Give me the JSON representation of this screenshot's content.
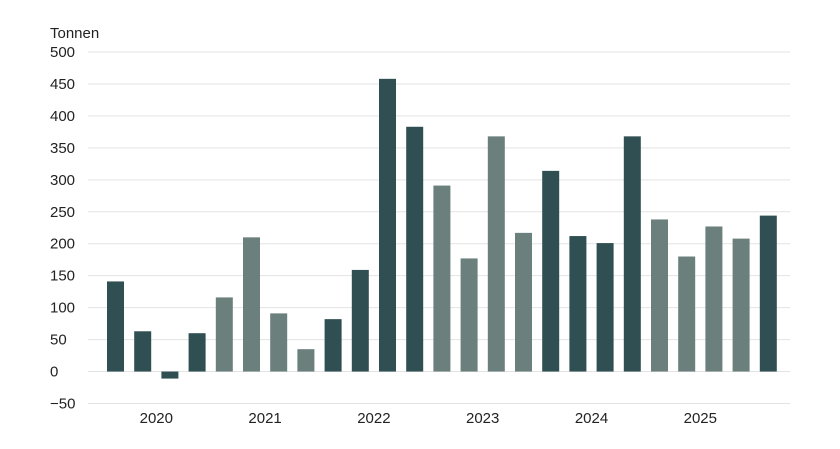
{
  "chart_data": {
    "type": "bar",
    "unit_label": "Tonnen",
    "ylim": [
      -50,
      500
    ],
    "yticks": [
      -50,
      0,
      50,
      100,
      150,
      200,
      250,
      300,
      350,
      400,
      450,
      500
    ],
    "ytick_labels": [
      "−50",
      "0",
      "50",
      "100",
      "150",
      "200",
      "250",
      "300",
      "350",
      "400",
      "450",
      "500"
    ],
    "xgroup_labels": [
      "2020",
      "2021",
      "2022",
      "2023",
      "2024",
      "2025"
    ],
    "grid": true,
    "values": [
      141,
      63,
      -11,
      60,
      116,
      210,
      91,
      35,
      82,
      159,
      458,
      383,
      291,
      177,
      368,
      217,
      314,
      212,
      201,
      368,
      238,
      180,
      227,
      208,
      244
    ],
    "styles": [
      "dark",
      "dark",
      "dark",
      "dark",
      "light",
      "light",
      "light",
      "light",
      "dark",
      "dark",
      "dark",
      "dark",
      "light",
      "light",
      "light",
      "light",
      "dark",
      "dark",
      "dark",
      "dark",
      "light",
      "light",
      "light",
      "light",
      "dark"
    ],
    "colors": {
      "dark": "#2f4f52",
      "light": "#6b7f7d",
      "grid": "#e3e3e3"
    }
  }
}
